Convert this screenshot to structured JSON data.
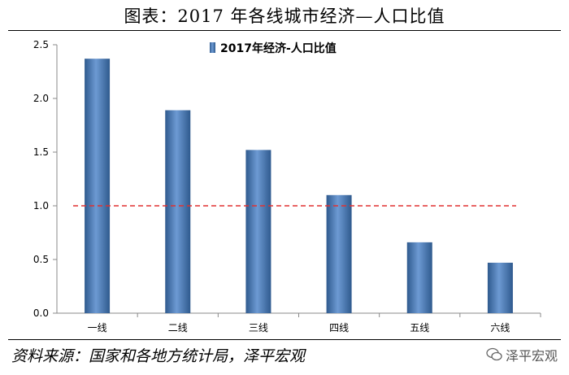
{
  "title": "图表：2017 年各线城市经济—人口比值",
  "source": "资料来源：国家和各地方统计局，泽平宏观",
  "watermark": "泽平宏观",
  "colors": {
    "bar": "#4f81bd",
    "bar_dark": "#2f5a8e",
    "reference_line": "#e03030",
    "axis": "#888888"
  },
  "chart_data": {
    "type": "bar",
    "categories": [
      "一线",
      "二线",
      "三线",
      "四线",
      "五线",
      "六线"
    ],
    "series": [
      {
        "name": "2017年经济-人口比值",
        "values": [
          2.37,
          1.89,
          1.52,
          1.1,
          0.66,
          0.47
        ]
      }
    ],
    "ylim": [
      0,
      2.5
    ],
    "yticks": [
      "0.0",
      "0.5",
      "1.0",
      "1.5",
      "2.0",
      "2.5"
    ],
    "reference_line": 1.0,
    "legend_position": "top-center",
    "grid": false
  }
}
